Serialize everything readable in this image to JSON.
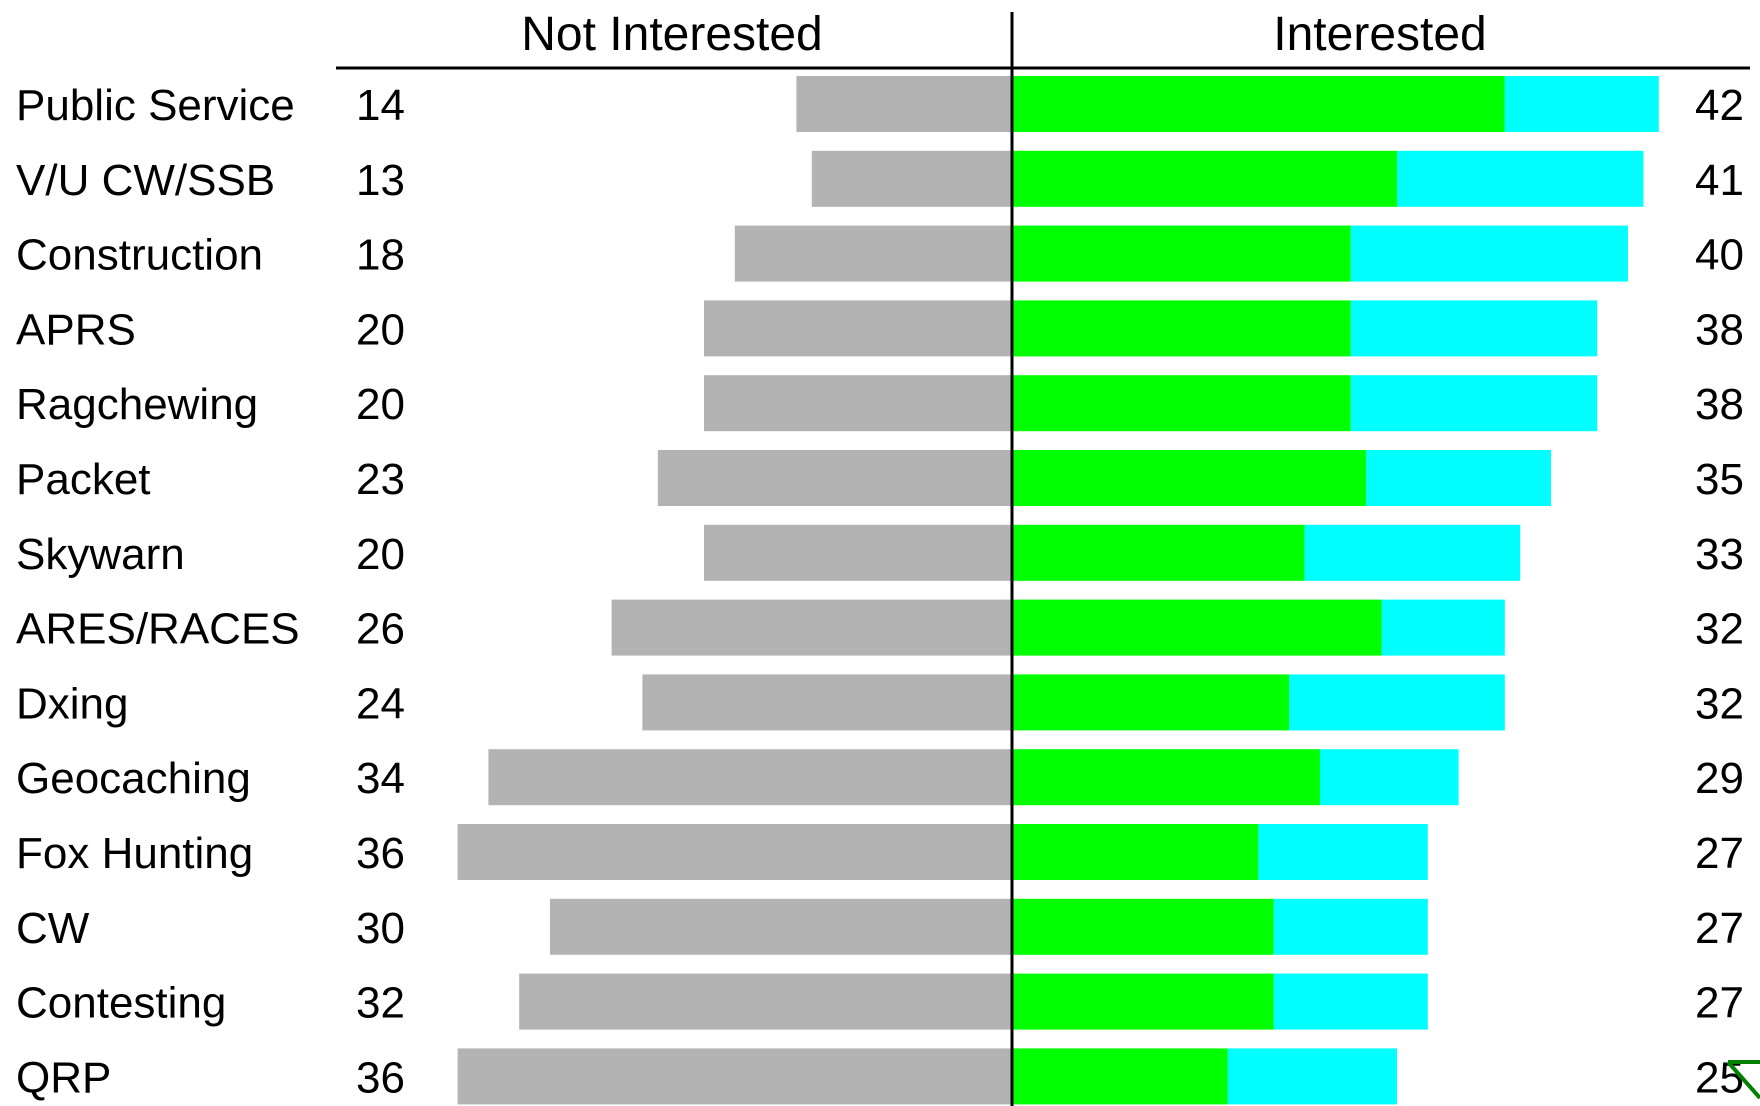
{
  "chart_data": {
    "type": "bar",
    "stacked": true,
    "diverging": true,
    "headers": {
      "left": "Not Interested",
      "right": "Interested"
    },
    "categories": [
      "Public Service",
      "V/U CW/SSB",
      "Construction",
      "APRS",
      "Ragchewing",
      "Packet",
      "Skywarn",
      "ARES/RACES",
      "Dxing",
      "Geocaching",
      "Fox Hunting",
      "CW",
      "Contesting",
      "QRP"
    ],
    "not_interested": [
      14,
      13,
      18,
      20,
      20,
      23,
      20,
      26,
      24,
      34,
      36,
      30,
      32,
      36
    ],
    "interested_total": [
      42,
      41,
      40,
      38,
      38,
      35,
      33,
      32,
      32,
      29,
      27,
      27,
      27,
      25
    ],
    "interested_green_part": [
      32,
      25,
      22,
      22,
      22,
      23,
      19,
      24,
      18,
      20,
      16,
      17,
      17,
      14
    ],
    "interested_cyan_part": [
      10,
      16,
      18,
      16,
      16,
      12,
      14,
      8,
      14,
      9,
      11,
      10,
      10,
      11
    ],
    "colors": {
      "not_interested": "#b3b3b3",
      "interested_green": "#00ff00",
      "interested_cyan": "#00ffff",
      "axis": "#000000",
      "marker": "#008000"
    },
    "grid": false
  }
}
